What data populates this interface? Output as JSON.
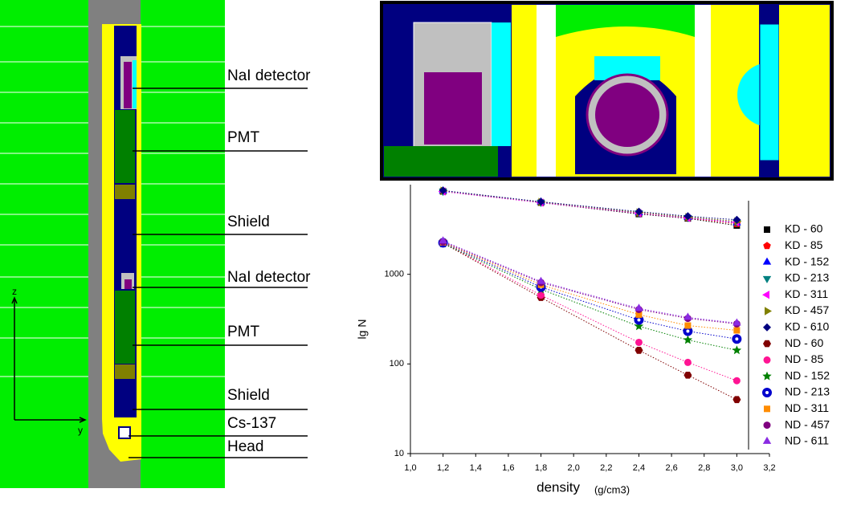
{
  "diagram": {
    "labels": [
      "NaI detector",
      "PMT",
      "Shield",
      "NaI detector",
      "PMT",
      "Shield",
      "Cs-137",
      "Head"
    ],
    "axes": [
      "z",
      "y"
    ]
  },
  "chart_data": {
    "type": "line",
    "log_y": true,
    "x_label": "density",
    "x_unit": "(g/cm3)",
    "y_label": "lg N",
    "x": [
      1.2,
      1.8,
      2.4,
      2.7,
      3.0
    ],
    "xlim": [
      1.0,
      3.2
    ],
    "xticks": [
      {
        "value": 1.0,
        "label": "1,0"
      },
      {
        "value": 1.2,
        "label": "1,2"
      },
      {
        "value": 1.4,
        "label": "1,4"
      },
      {
        "value": 1.6,
        "label": "1,6"
      },
      {
        "value": 1.8,
        "label": "1,8"
      },
      {
        "value": 2.0,
        "label": "2,0"
      },
      {
        "value": 2.2,
        "label": "2,2"
      },
      {
        "value": 2.4,
        "label": "2,4"
      },
      {
        "value": 2.6,
        "label": "2,6"
      },
      {
        "value": 2.8,
        "label": "2,8"
      },
      {
        "value": 3.0,
        "label": "3,0"
      },
      {
        "value": 3.2,
        "label": "3,2"
      }
    ],
    "ylim": [
      10,
      10000
    ],
    "yticks": [
      10,
      100,
      1000
    ],
    "series": [
      {
        "name": "KD - 60",
        "color": "#000000",
        "marker": "square",
        "values": [
          8400,
          6300,
          4700,
          4200,
          3500
        ]
      },
      {
        "name": "KD - 85",
        "color": "#ff0000",
        "marker": "pentagon",
        "values": [
          8500,
          6350,
          4800,
          4250,
          3650
        ]
      },
      {
        "name": "KD - 152",
        "color": "#0000ff",
        "marker": "triangle-up",
        "values": [
          8500,
          6400,
          4850,
          4300,
          3750
        ]
      },
      {
        "name": "KD - 213",
        "color": "#008080",
        "marker": "triangle-down",
        "values": [
          8450,
          6350,
          4850,
          4300,
          3800
        ]
      },
      {
        "name": "KD - 311",
        "color": "#ff00ff",
        "marker": "triangle-left",
        "values": [
          8400,
          6300,
          4800,
          4250,
          3800
        ]
      },
      {
        "name": "KD - 457",
        "color": "#808000",
        "marker": "triangle-right",
        "values": [
          8550,
          6400,
          4900,
          4350,
          3900
        ]
      },
      {
        "name": "KD - 610",
        "color": "#000080",
        "marker": "diamond",
        "values": [
          8600,
          6450,
          5000,
          4450,
          4050
        ]
      },
      {
        "name": "ND - 60",
        "color": "#800000",
        "marker": "hexagon",
        "values": [
          2230,
          551,
          142,
          75,
          40
        ]
      },
      {
        "name": "ND - 85",
        "color": "#ff1493",
        "marker": "circle",
        "values": [
          2250,
          585,
          174,
          104,
          65
        ]
      },
      {
        "name": "ND - 152",
        "color": "#008000",
        "marker": "star",
        "values": [
          2200,
          680,
          263,
          185,
          142
        ]
      },
      {
        "name": "ND - 213",
        "color": "#0000cd",
        "marker": "half-circle",
        "values": [
          2250,
          720,
          310,
          232,
          190
        ]
      },
      {
        "name": "ND - 311",
        "color": "#ff8c00",
        "marker": "square",
        "values": [
          2270,
          765,
          355,
          268,
          237
        ]
      },
      {
        "name": "ND - 457",
        "color": "#800080",
        "marker": "circle",
        "values": [
          2300,
          810,
          405,
          322,
          280
        ]
      },
      {
        "name": "ND - 611",
        "color": "#8a2be2",
        "marker": "triangle-up",
        "values": [
          2350,
          830,
          415,
          330,
          285
        ]
      }
    ]
  }
}
